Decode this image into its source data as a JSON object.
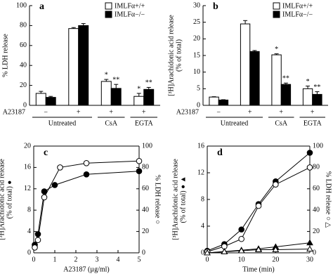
{
  "chart_data": [
    {
      "type": "bar",
      "panel": "a",
      "ylabel": [
        "% LDH release"
      ],
      "xlabel": "A23187",
      "categories": [
        "−",
        "+",
        "+",
        "+"
      ],
      "groups": [
        "Untreated",
        "CsA",
        "EGTA"
      ],
      "ylim": [
        0,
        100
      ],
      "yticks": [
        0,
        20,
        40,
        60,
        80,
        100
      ],
      "series": [
        {
          "name": "IMLFα+/+",
          "color": "#ffffff",
          "values": [
            12,
            77,
            24,
            9
          ],
          "errors": [
            2,
            1,
            2,
            3
          ],
          "significance": [
            null,
            null,
            "*",
            "*"
          ]
        },
        {
          "name": "IMLFα−/−",
          "color": "#000000",
          "values": [
            8,
            80,
            17,
            16
          ],
          "errors": [
            1,
            2,
            4,
            2
          ],
          "significance": [
            null,
            null,
            "**",
            "**"
          ]
        }
      ]
    },
    {
      "type": "bar",
      "panel": "b",
      "ylabel": [
        "[³H]Arachidonic acid release",
        "(% of total)"
      ],
      "xlabel": "A23187",
      "categories": [
        "−",
        "+",
        "+",
        "+"
      ],
      "groups": [
        "Untreated",
        "CsA",
        "EGTA"
      ],
      "ylim": [
        0,
        30
      ],
      "yticks": [
        0,
        5,
        10,
        15,
        20,
        25,
        30
      ],
      "series": [
        {
          "name": "IMLFα+/+",
          "color": "#ffffff",
          "values": [
            2.5,
            24.5,
            15.2,
            5
          ],
          "errors": [
            0.1,
            1,
            0.3,
            0.8
          ],
          "significance": [
            null,
            null,
            "*",
            "*"
          ]
        },
        {
          "name": "IMLFα−/−",
          "color": "#000000",
          "values": [
            1.6,
            16.2,
            6.3,
            3.3
          ],
          "errors": [
            0.1,
            0.3,
            0.4,
            0.8
          ],
          "significance": [
            null,
            null,
            "**",
            "**"
          ]
        }
      ]
    },
    {
      "type": "line",
      "panel": "c",
      "ylabel": [
        "[³H]Arachidonic acid release",
        "(% of total) ●"
      ],
      "y2label": [
        "% LDH release ○"
      ],
      "xlabel": "A23187 (µg/ml)",
      "xlim": [
        0,
        5
      ],
      "xticks": [
        0,
        1,
        2,
        3,
        4,
        5
      ],
      "ylim": [
        0,
        20
      ],
      "yticks": [
        0,
        4,
        8,
        12,
        16,
        20
      ],
      "y2lim": [
        0,
        100
      ],
      "y2ticks": [
        0,
        20,
        40,
        60,
        80,
        100
      ],
      "series": [
        {
          "marker": "circle",
          "color": "#000000",
          "x": [
            0.05,
            0.2,
            0.5,
            1,
            2.5,
            5
          ],
          "values": [
            1.5,
            3.5,
            11.5,
            12.7,
            14.7,
            15.3
          ]
        },
        {
          "marker": "circle",
          "color": "#ffffff",
          "axis": "y2",
          "x": [
            0.05,
            0.2,
            0.5,
            1.25,
            2.5,
            5
          ],
          "values": [
            5,
            12,
            52,
            80,
            84,
            86
          ]
        }
      ]
    },
    {
      "type": "line",
      "panel": "d",
      "ylabel": [
        "[³H]Arachidonic acid release",
        "(% of total) ● ▲"
      ],
      "y2label": [
        "% LDH release ○ △"
      ],
      "xlabel": "Time (min)",
      "xlim": [
        0,
        30
      ],
      "xticks": [
        0,
        10,
        20,
        30
      ],
      "ylim": [
        0,
        16
      ],
      "yticks": [
        0,
        4,
        8,
        12,
        16
      ],
      "y2lim": [
        0,
        100
      ],
      "y2ticks": [
        0,
        20,
        40,
        60,
        80,
        100
      ],
      "series": [
        {
          "marker": "circle",
          "color": "#000000",
          "x": [
            0,
            5,
            10,
            15,
            20,
            30
          ],
          "values": [
            0.3,
            1.3,
            3.5,
            7.3,
            10.7,
            15
          ]
        },
        {
          "marker": "circle",
          "color": "#ffffff",
          "axis": "y2",
          "x": [
            0,
            5,
            10,
            15,
            20,
            30
          ],
          "values": [
            1,
            6,
            13,
            44,
            64,
            80
          ]
        },
        {
          "marker": "triangle",
          "color": "#000000",
          "x": [
            0,
            5,
            10,
            15,
            20,
            30
          ],
          "values": [
            0,
            0.2,
            0.4,
            0.6,
            0.9,
            1.5
          ]
        },
        {
          "marker": "triangle",
          "color": "#ffffff",
          "axis": "y2",
          "x": [
            0,
            5,
            10,
            15,
            20,
            30
          ],
          "values": [
            0,
            1,
            2,
            3,
            3,
            3.5
          ]
        }
      ]
    }
  ]
}
